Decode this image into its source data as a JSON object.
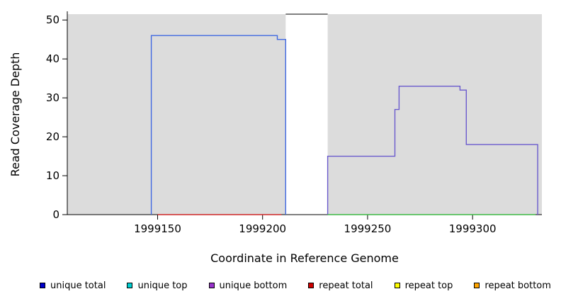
{
  "figure": {
    "xlabel": "Coordinate in Reference Genome",
    "ylabel": "Read Coverage Depth"
  },
  "legend": {
    "items": [
      {
        "label": "unique total",
        "color": "#0000CD"
      },
      {
        "label": "unique top",
        "color": "#00CED1"
      },
      {
        "label": "unique bottom",
        "color": "#9932CC"
      },
      {
        "label": "repeat total",
        "color": "#CD0000"
      },
      {
        "label": "repeat top",
        "color": "#FFFF00"
      },
      {
        "label": "repeat bottom",
        "color": "#FFA500"
      }
    ]
  },
  "chart_data": {
    "type": "line",
    "subtype": "step-coverage",
    "title": "",
    "xlabel": "Coordinate in Reference Genome",
    "ylabel": "Read Coverage Depth",
    "xlim": [
      1999107,
      1999333
    ],
    "ylim": [
      0,
      51.5
    ],
    "x_ticks": [
      1999150,
      1999200,
      1999250,
      1999300
    ],
    "y_ticks": [
      0,
      10,
      20,
      30,
      40,
      50
    ],
    "grid": false,
    "legend_position": "bottom",
    "background_color": "#DCDCDC",
    "background_regions": [
      [
        1999107,
        1999211
      ],
      [
        1999231,
        1999333
      ]
    ],
    "top_border_segment": [
      1999211,
      1999231
    ],
    "series": [
      {
        "name": "unique-coverage-left-block",
        "color": "#4169E1",
        "points": [
          [
            1999147,
            0
          ],
          [
            1999147,
            46
          ],
          [
            1999207,
            46
          ],
          [
            1999207,
            45
          ],
          [
            1999211,
            45
          ],
          [
            1999211,
            0
          ]
        ]
      },
      {
        "name": "unique-bottom-coverage-right-block",
        "color": "#6A5ACD",
        "points": [
          [
            1999231,
            0
          ],
          [
            1999231,
            15
          ],
          [
            1999263,
            15
          ],
          [
            1999263,
            27
          ],
          [
            1999265,
            27
          ],
          [
            1999265,
            33
          ],
          [
            1999294,
            33
          ],
          [
            1999294,
            32
          ],
          [
            1999297,
            32
          ],
          [
            1999297,
            18
          ],
          [
            1999331,
            18
          ],
          [
            1999331,
            0
          ]
        ]
      },
      {
        "name": "repeat-total-baseline",
        "color": "#CD2626",
        "points": [
          [
            1999150,
            0
          ],
          [
            1999209,
            0
          ]
        ]
      },
      {
        "name": "right-baseline",
        "color": "#3CB843",
        "points": [
          [
            1999231,
            0
          ],
          [
            1999330,
            0
          ]
        ]
      }
    ]
  }
}
